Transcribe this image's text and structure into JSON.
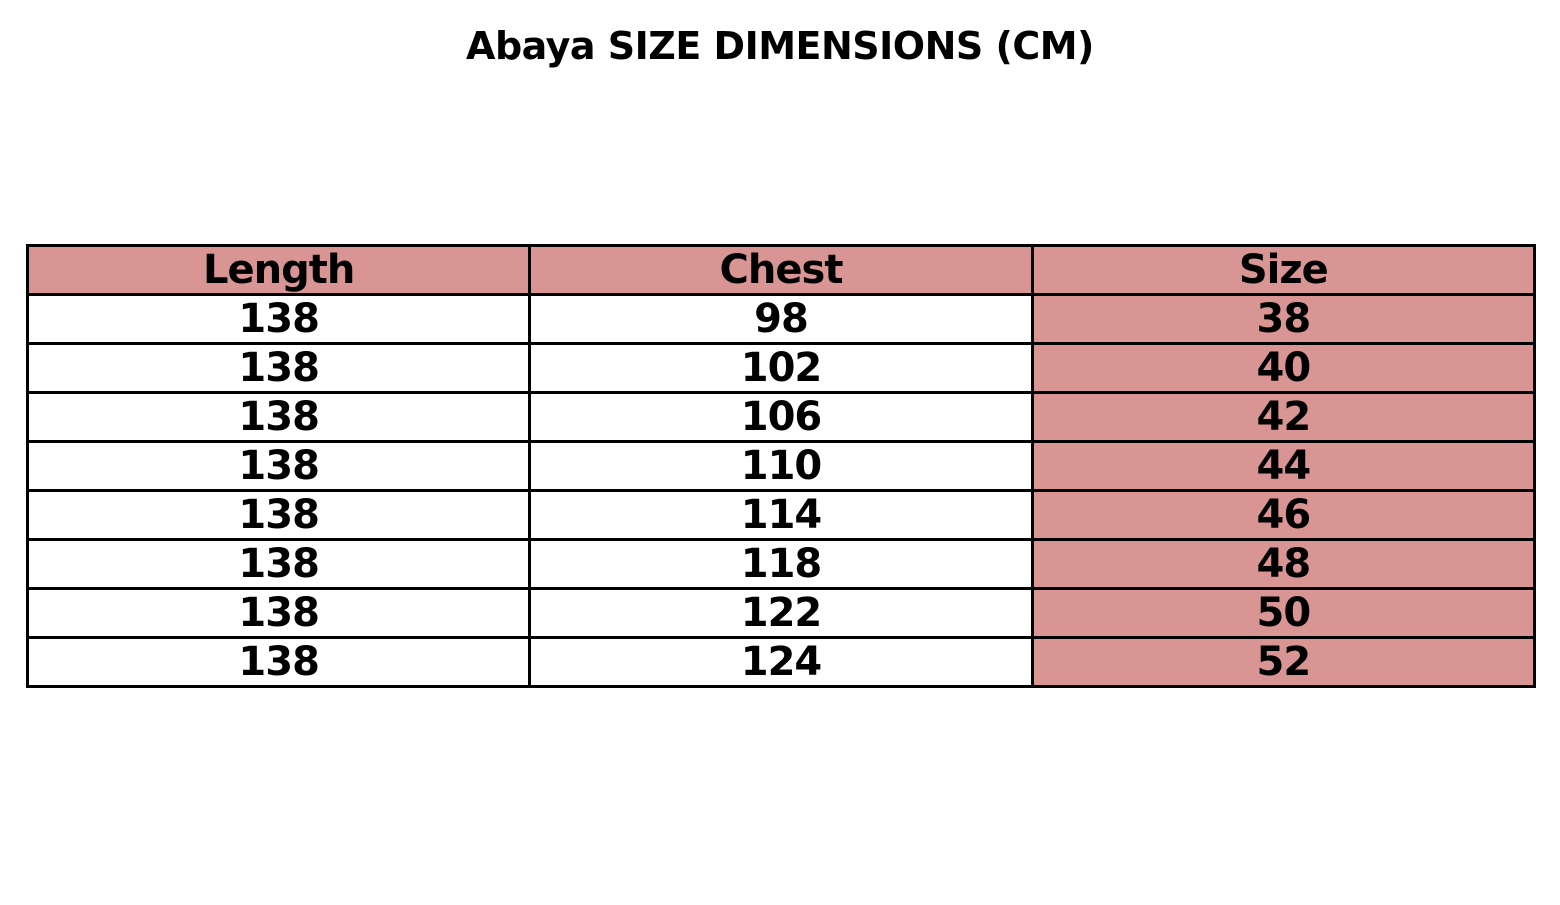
{
  "title": "Abaya SIZE DIMENSIONS (CM)",
  "colors": {
    "highlight": "#d99594",
    "border": "#000000"
  },
  "table": {
    "headers": [
      "Length",
      "Chest",
      "Size"
    ],
    "rows": [
      [
        "138",
        "98",
        "38"
      ],
      [
        "138",
        "102",
        "40"
      ],
      [
        "138",
        "106",
        "42"
      ],
      [
        "138",
        "110",
        "44"
      ],
      [
        "138",
        "114",
        "46"
      ],
      [
        "138",
        "118",
        "48"
      ],
      [
        "138",
        "122",
        "50"
      ],
      [
        "138",
        "124",
        "52"
      ]
    ]
  }
}
